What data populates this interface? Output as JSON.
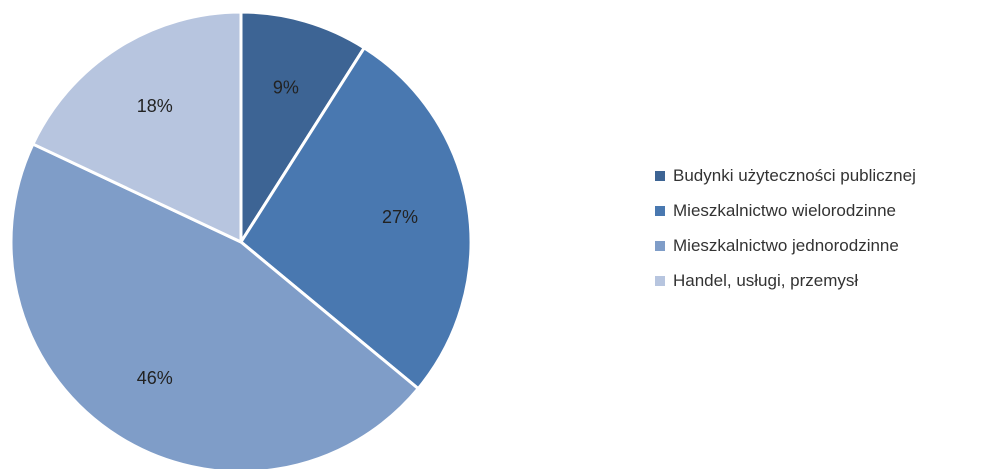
{
  "chart_data": {
    "type": "pie",
    "title": "",
    "slices": [
      {
        "label": "Budynki użyteczności publicznej",
        "value": 9,
        "value_label": "9%",
        "color": "#3d6494"
      },
      {
        "label": "Mieszkalnictwo wielorodzinne",
        "value": 27,
        "value_label": "27%",
        "color": "#4978b0"
      },
      {
        "label": "Mieszkalnictwo jednorodzinne",
        "value": 46,
        "value_label": "46%",
        "color": "#7f9dc8"
      },
      {
        "label": "Handel, usługi, przemysł",
        "value": 18,
        "value_label": "18%",
        "color": "#b7c5df"
      }
    ],
    "start_direction": "top",
    "order": "clockwise",
    "legend_position": "right"
  }
}
